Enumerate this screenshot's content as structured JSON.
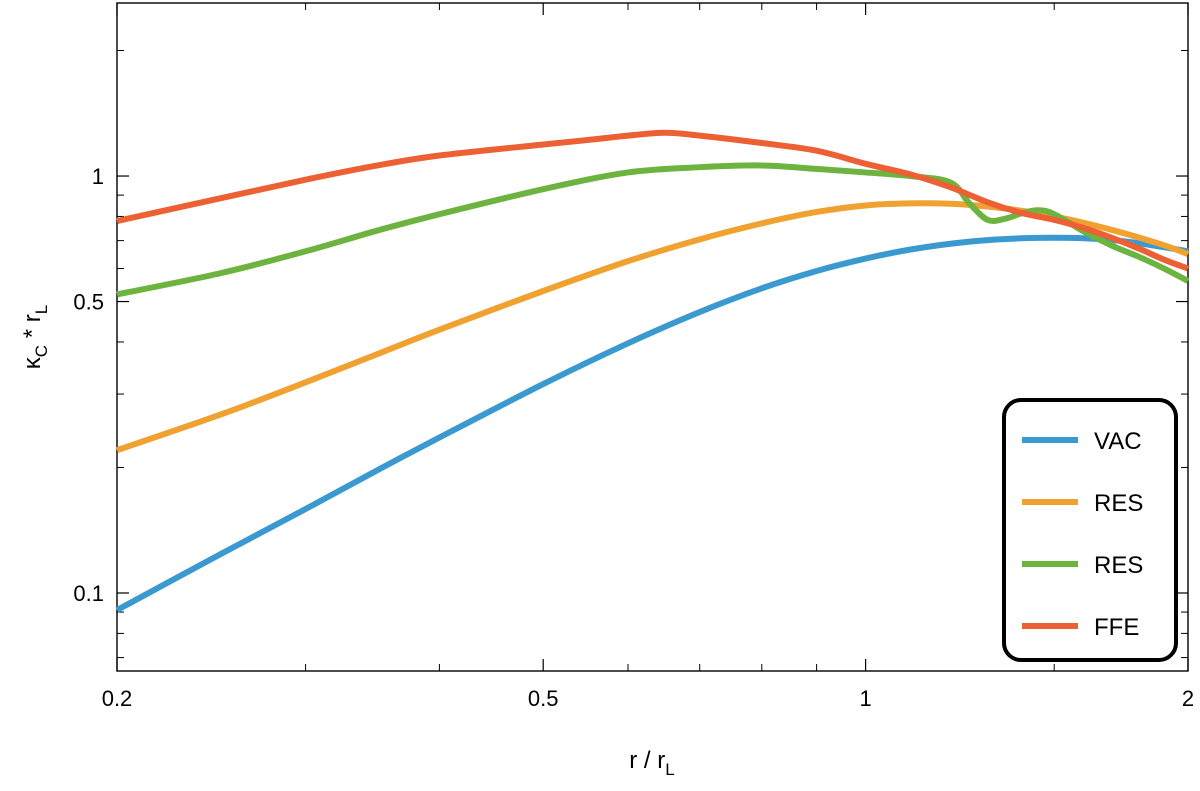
{
  "chart_data": {
    "type": "line",
    "xscale": "log",
    "yscale": "log",
    "xlim": [
      0.2,
      2
    ],
    "ylim": [
      0.065,
      2.6
    ],
    "xlabel": {
      "main": "r / r",
      "sub": "L"
    },
    "ylabel": {
      "main": "κ",
      "sub1": "C",
      "mid": " * r",
      "sub2": "L"
    },
    "x_ticks": [
      {
        "value": 0.2,
        "label": "0.2"
      },
      {
        "value": 0.5,
        "label": "0.5"
      },
      {
        "value": 1,
        "label": "1"
      },
      {
        "value": 2,
        "label": "2"
      }
    ],
    "x_minor_ticks": [
      0.3,
      0.4,
      0.6,
      0.7,
      0.8,
      0.9,
      1.5
    ],
    "y_ticks": [
      {
        "value": 0.1,
        "label": "0.1"
      },
      {
        "value": 0.5,
        "label": "0.5"
      },
      {
        "value": 1,
        "label": "1"
      }
    ],
    "y_minor_ticks": [
      0.07,
      0.08,
      0.09,
      0.2,
      0.3,
      0.4,
      0.6,
      0.7,
      0.8,
      0.9,
      2
    ],
    "grid": false,
    "legend": {
      "position": "bottom-right",
      "boxed": true
    },
    "series": [
      {
        "name": "VAC",
        "color": "#3a9ad0",
        "x": [
          0.2,
          0.25,
          0.3,
          0.35,
          0.4,
          0.5,
          0.6,
          0.7,
          0.8,
          0.9,
          1.0,
          1.1,
          1.2,
          1.3,
          1.4,
          1.5,
          1.6,
          1.7,
          1.8,
          1.9,
          2.0
        ],
        "y": [
          0.091,
          0.124,
          0.159,
          0.197,
          0.236,
          0.317,
          0.397,
          0.472,
          0.538,
          0.592,
          0.634,
          0.666,
          0.688,
          0.702,
          0.709,
          0.711,
          0.709,
          0.702,
          0.69,
          0.675,
          0.66
        ]
      },
      {
        "name": "RES",
        "color": "#f0a130",
        "x": [
          0.2,
          0.25,
          0.3,
          0.35,
          0.4,
          0.5,
          0.6,
          0.7,
          0.8,
          0.9,
          1.0,
          1.1,
          1.2,
          1.3,
          1.4,
          1.5,
          1.6,
          1.7,
          1.8,
          1.9,
          2.0
        ],
        "y": [
          0.22,
          0.268,
          0.32,
          0.374,
          0.428,
          0.53,
          0.625,
          0.705,
          0.77,
          0.82,
          0.85,
          0.86,
          0.858,
          0.845,
          0.825,
          0.8,
          0.772,
          0.742,
          0.712,
          0.682,
          0.65
        ]
      },
      {
        "name": "RES",
        "color": "#6db33f",
        "x": [
          0.2,
          0.25,
          0.3,
          0.35,
          0.4,
          0.5,
          0.6,
          0.7,
          0.8,
          0.9,
          1.0,
          1.1,
          1.2,
          1.25,
          1.3,
          1.35,
          1.4,
          1.45,
          1.5,
          1.6,
          1.7,
          1.8,
          1.9,
          2.0
        ],
        "y": [
          0.52,
          0.585,
          0.66,
          0.74,
          0.81,
          0.93,
          1.02,
          1.05,
          1.06,
          1.04,
          1.02,
          1.0,
          0.965,
          0.86,
          0.785,
          0.79,
          0.815,
          0.828,
          0.81,
          0.735,
          0.68,
          0.64,
          0.6,
          0.56
        ]
      },
      {
        "name": "FFE",
        "color": "#ec6034",
        "x": [
          0.2,
          0.25,
          0.3,
          0.35,
          0.4,
          0.5,
          0.55,
          0.6,
          0.65,
          0.7,
          0.8,
          0.9,
          1.0,
          1.1,
          1.2,
          1.3,
          1.4,
          1.5,
          1.6,
          1.7,
          1.8,
          1.9,
          2.0
        ],
        "y": [
          0.78,
          0.885,
          0.98,
          1.06,
          1.12,
          1.19,
          1.22,
          1.25,
          1.27,
          1.25,
          1.2,
          1.15,
          1.07,
          1.01,
          0.94,
          0.865,
          0.815,
          0.785,
          0.75,
          0.71,
          0.67,
          0.63,
          0.6
        ]
      }
    ]
  }
}
